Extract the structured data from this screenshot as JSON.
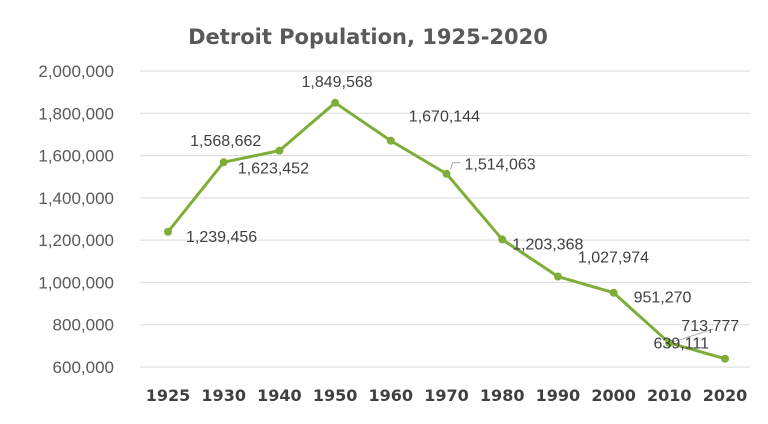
{
  "chart_data": {
    "type": "line",
    "title": "Detroit Population, 1925-2020",
    "xlabel": "",
    "ylabel": "",
    "categories": [
      "1925",
      "1930",
      "1940",
      "1950",
      "1960",
      "1970",
      "1980",
      "1990",
      "2000",
      "2010",
      "2020"
    ],
    "series": [
      {
        "values": [
          1239456,
          1568662,
          1623452,
          1849568,
          1670144,
          1514063,
          1203368,
          1027974,
          951270,
          713777,
          639111
        ],
        "labels": [
          "1,239,456",
          "1,568,662",
          "1,623,452",
          "1,849,568",
          "1,670,144",
          "1,514,063",
          "1,203,368",
          "1,027,974",
          "951,270",
          "713,777",
          "639,111"
        ]
      }
    ],
    "ylim": [
      600000,
      2000000
    ],
    "yticks": [
      600000,
      800000,
      1000000,
      1200000,
      1400000,
      1600000,
      1800000,
      2000000
    ],
    "ytick_labels": [
      "600,000",
      "800,000",
      "1,000,000",
      "1,200,000",
      "1,400,000",
      "1,600,000",
      "1,800,000",
      "2,000,000"
    ],
    "grid": true,
    "legend": "none",
    "colors": {
      "series": "#7fad3a",
      "grid": "#d9d9d9",
      "text": "#595959"
    }
  }
}
